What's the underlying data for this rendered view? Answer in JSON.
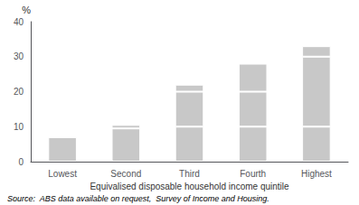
{
  "chart_data": {
    "type": "bar",
    "stacked": true,
    "categories": [
      "Lowest",
      "Second",
      "Third",
      "Fourth",
      "Highest"
    ],
    "series": [
      {
        "values": [
          7.0,
          9.5,
          10.0,
          10.0,
          10.0
        ]
      },
      {
        "values": [
          null,
          1.0,
          10.0,
          10.0,
          20.0
        ]
      },
      {
        "values": [
          null,
          null,
          2.0,
          8.0,
          3.0
        ]
      }
    ],
    "color": "#c8c8c8",
    "ylim": [
      0,
      40
    ],
    "yticks": [
      0,
      10,
      20,
      30,
      40
    ],
    "ylabel": "%",
    "xlabel": "Equivalised disposable household income quintile",
    "annotations": [
      "Source:  ABS data available on request,  Survey of Income and Housing."
    ],
    "grid": false
  }
}
